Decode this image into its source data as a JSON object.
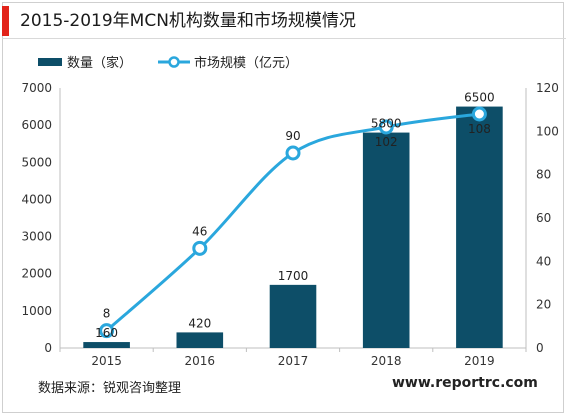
{
  "header": {
    "title": "2015-2019年MCN机构数量和市场规模情况",
    "accent_color": "#e2231a"
  },
  "footer": {
    "source": "数据来源：锐观咨询整理",
    "website": "www.reportrc.com"
  },
  "colors": {
    "bar": "#0d4e68",
    "line": "#2aa7dd",
    "axis": "#bfbfbf"
  },
  "chart_data": {
    "type": "bar",
    "categories": [
      "2015",
      "2016",
      "2017",
      "2018",
      "2019"
    ],
    "series": [
      {
        "name": "数量（家）",
        "type": "bar",
        "axis": "left",
        "values": [
          160,
          420,
          1700,
          5800,
          6500
        ]
      },
      {
        "name": "市场规模（亿元）",
        "type": "line",
        "axis": "right",
        "values": [
          8,
          46,
          90,
          102,
          108
        ]
      }
    ],
    "y_left": {
      "range": [
        0,
        7000
      ],
      "ticks": [
        0,
        1000,
        2000,
        3000,
        4000,
        5000,
        6000,
        7000
      ]
    },
    "y_right": {
      "range": [
        0,
        120
      ],
      "ticks": [
        0,
        20,
        40,
        60,
        80,
        100,
        120
      ]
    },
    "grid": false,
    "legend": "top-left"
  }
}
